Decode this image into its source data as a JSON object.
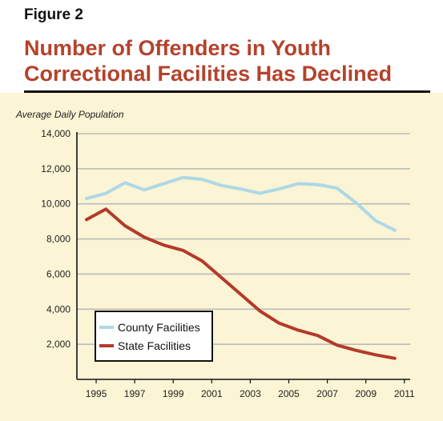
{
  "figure_label": "Figure 2",
  "title_line1": "Number of Offenders in Youth",
  "title_line2": "Correctional Facilities Has Declined",
  "colors": {
    "title": "#b5422c",
    "county": "#add8e6",
    "state": "#b33a2a",
    "grid": "#bbbbbb",
    "background": "#fbf4d5"
  },
  "chart_data": {
    "type": "line",
    "ylabel": "Average Daily Population",
    "xlabel": "",
    "ylim": [
      0,
      14000
    ],
    "xlim": [
      1994,
      2011.3
    ],
    "y_ticks": [
      2000,
      4000,
      6000,
      8000,
      10000,
      12000,
      14000
    ],
    "y_tick_labels": [
      "2,000",
      "4,000",
      "6,000",
      "8,000",
      "10,000",
      "12,000",
      "14,000"
    ],
    "x_ticks": [
      1995,
      1997,
      1999,
      2001,
      2003,
      2005,
      2007,
      2009,
      2011
    ],
    "x_tick_labels": [
      "1995",
      "1997",
      "1999",
      "2001",
      "2003",
      "2005",
      "2007",
      "2009",
      "2011"
    ],
    "grid": "horizontal",
    "legend_position": "bottom-left",
    "series": [
      {
        "name": "County Facilities",
        "x": [
          1994.5,
          1995.5,
          1996.5,
          1997.5,
          1998.5,
          1999.5,
          2000.5,
          2001.5,
          2002.5,
          2003.5,
          2004.5,
          2005.5,
          2006.5,
          2007.5,
          2008.5,
          2009.5,
          2010.5
        ],
        "y": [
          10300,
          10600,
          11200,
          10800,
          11150,
          11500,
          11400,
          11050,
          10850,
          10600,
          10850,
          11150,
          11100,
          10900,
          10050,
          9050,
          8500
        ]
      },
      {
        "name": "State Facilities",
        "x": [
          1994.5,
          1995.5,
          1996.5,
          1997.5,
          1998.5,
          1999.5,
          2000.5,
          2001.5,
          2002.5,
          2003.5,
          2004.5,
          2005.5,
          2006.5,
          2007.5,
          2008.5,
          2009.5,
          2010.5
        ],
        "y": [
          9100,
          9700,
          8750,
          8100,
          7650,
          7350,
          6750,
          5800,
          4850,
          3900,
          3200,
          2800,
          2500,
          1950,
          1650,
          1400,
          1200
        ]
      }
    ]
  }
}
